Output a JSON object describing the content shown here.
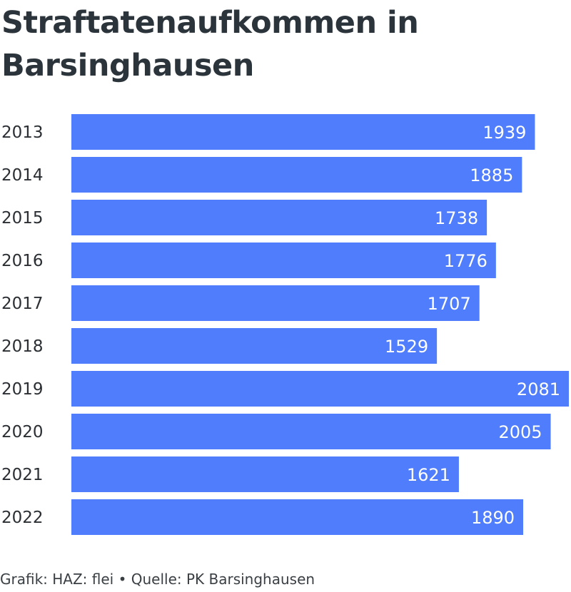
{
  "chart_data": {
    "type": "bar",
    "orientation": "horizontal",
    "title": "Straftatenaufkommen in Barsinghausen",
    "categories": [
      "2013",
      "2014",
      "2015",
      "2016",
      "2017",
      "2018",
      "2019",
      "2020",
      "2021",
      "2022"
    ],
    "values": [
      1939,
      1885,
      1738,
      1776,
      1707,
      1529,
      2081,
      2005,
      1621,
      1890
    ],
    "xlim": [
      0,
      2081
    ],
    "grid": false,
    "bar_color": "#4f7dfc",
    "label_color": "#ffffff"
  },
  "footer": {
    "credit": "Grafik: HAZ: flei • Quelle: PK Barsinghausen"
  }
}
